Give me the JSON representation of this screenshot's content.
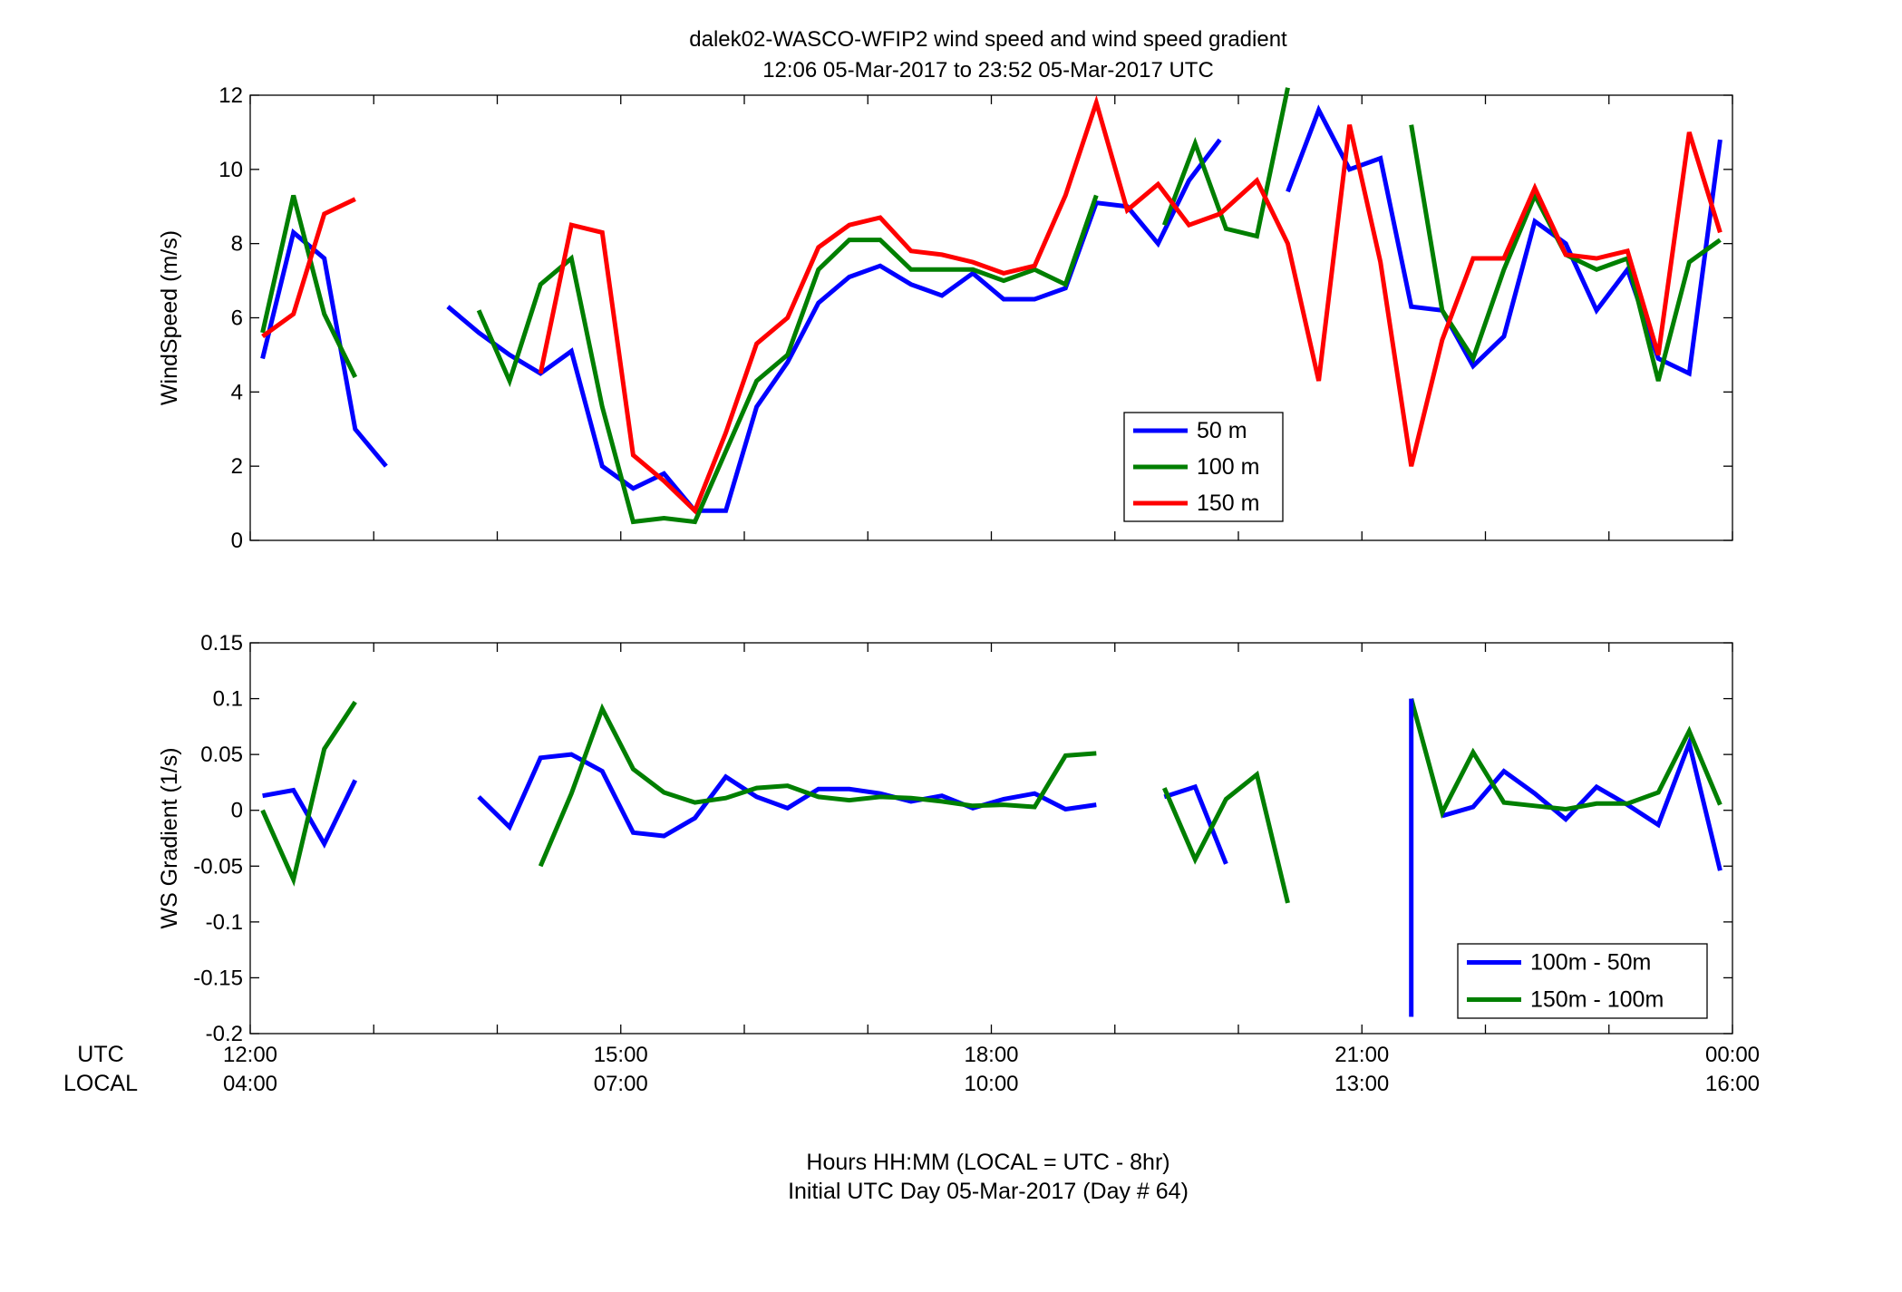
{
  "title": {
    "line1": "dalek02-WASCO-WFIP2  wind speed and wind speed gradient",
    "line2": "12:06 05-Mar-2017 to 23:52 05-Mar-2017  UTC"
  },
  "footer": {
    "line1": "Hours HH:MM  (LOCAL = UTC - 8hr)",
    "line2": "Initial UTC Day 05-Mar-2017 (Day # 64)"
  },
  "time_axis": {
    "utc_label": "UTC",
    "local_label": "LOCAL",
    "ticks": [
      {
        "hour": 12,
        "utc": "12:00",
        "local": "04:00"
      },
      {
        "hour": 15,
        "utc": "15:00",
        "local": "07:00"
      },
      {
        "hour": 18,
        "utc": "18:00",
        "local": "10:00"
      },
      {
        "hour": 21,
        "utc": "21:00",
        "local": "13:00"
      },
      {
        "hour": 24,
        "utc": "00:00",
        "local": "16:00"
      }
    ]
  },
  "colors": {
    "blue": "#0000ff",
    "green": "#007f00",
    "red": "#ff0000",
    "axis": "#000000"
  },
  "chart_data": [
    {
      "type": "line",
      "ylabel": "WindSpeed (m/s)",
      "xlim": [
        12,
        24
      ],
      "ylim": [
        0,
        12
      ],
      "yticks": [
        0,
        2,
        4,
        6,
        8,
        10,
        12
      ],
      "legend_position": "bottom-right",
      "series": [
        {
          "name": "50 m",
          "color": "#0000ff",
          "points": [
            [
              12.1,
              4.9
            ],
            [
              12.35,
              8.3
            ],
            [
              12.6,
              7.6
            ],
            [
              12.85,
              3.0
            ],
            [
              13.1,
              2.0
            ],
            null,
            [
              13.6,
              6.3
            ],
            [
              13.85,
              5.6
            ],
            [
              14.1,
              5.0
            ],
            [
              14.35,
              4.5
            ],
            [
              14.6,
              5.1
            ],
            [
              14.85,
              2.0
            ],
            [
              15.1,
              1.4
            ],
            [
              15.35,
              1.8
            ],
            [
              15.6,
              0.8
            ],
            [
              15.85,
              0.8
            ],
            [
              16.1,
              3.6
            ],
            [
              16.35,
              4.8
            ],
            [
              16.6,
              6.4
            ],
            [
              16.85,
              7.1
            ],
            [
              17.1,
              7.4
            ],
            [
              17.35,
              6.9
            ],
            [
              17.6,
              6.6
            ],
            [
              17.85,
              7.2
            ],
            [
              18.1,
              6.5
            ],
            [
              18.35,
              6.5
            ],
            [
              18.6,
              6.8
            ],
            [
              18.85,
              9.1
            ],
            [
              19.1,
              9.0
            ],
            [
              19.35,
              8.0
            ],
            [
              19.6,
              9.7
            ],
            [
              19.85,
              10.8
            ],
            null,
            [
              20.4,
              9.4
            ],
            [
              20.65,
              11.6
            ],
            [
              20.9,
              10.0
            ],
            [
              21.15,
              10.3
            ],
            [
              21.4,
              6.3
            ],
            [
              21.65,
              6.2
            ],
            [
              21.9,
              4.7
            ],
            [
              22.15,
              5.5
            ],
            [
              22.4,
              8.6
            ],
            [
              22.65,
              8.0
            ],
            [
              22.9,
              6.2
            ],
            [
              23.15,
              7.3
            ],
            [
              23.4,
              4.9
            ],
            [
              23.65,
              4.5
            ],
            [
              23.9,
              10.8
            ]
          ]
        },
        {
          "name": "100 m",
          "color": "#007f00",
          "points": [
            [
              12.1,
              5.6
            ],
            [
              12.35,
              9.3
            ],
            [
              12.6,
              6.1
            ],
            [
              12.85,
              4.4
            ],
            null,
            [
              13.85,
              6.2
            ],
            [
              14.1,
              4.3
            ],
            [
              14.35,
              6.9
            ],
            [
              14.6,
              7.6
            ],
            [
              14.85,
              3.6
            ],
            [
              15.1,
              0.5
            ],
            [
              15.35,
              0.6
            ],
            [
              15.6,
              0.5
            ],
            [
              15.85,
              2.4
            ],
            [
              16.1,
              4.3
            ],
            [
              16.35,
              5.0
            ],
            [
              16.6,
              7.3
            ],
            [
              16.85,
              8.1
            ],
            [
              17.1,
              8.1
            ],
            [
              17.35,
              7.3
            ],
            [
              17.6,
              7.3
            ],
            [
              17.85,
              7.3
            ],
            [
              18.1,
              7.0
            ],
            [
              18.35,
              7.3
            ],
            [
              18.6,
              6.9
            ],
            [
              18.85,
              9.3
            ],
            null,
            [
              19.4,
              8.5
            ],
            [
              19.65,
              10.7
            ],
            [
              19.9,
              8.4
            ],
            [
              20.15,
              8.2
            ],
            [
              20.4,
              12.2
            ],
            null,
            [
              21.4,
              11.2
            ],
            [
              21.65,
              6.2
            ],
            [
              21.9,
              4.9
            ],
            [
              22.15,
              7.3
            ],
            [
              22.4,
              9.3
            ],
            [
              22.65,
              7.7
            ],
            [
              22.9,
              7.3
            ],
            [
              23.15,
              7.6
            ],
            [
              23.4,
              4.3
            ],
            [
              23.65,
              7.5
            ],
            [
              23.9,
              8.1
            ]
          ]
        },
        {
          "name": "150 m",
          "color": "#ff0000",
          "points": [
            [
              12.1,
              5.5
            ],
            [
              12.35,
              6.1
            ],
            [
              12.6,
              8.8
            ],
            [
              12.85,
              9.2
            ],
            null,
            [
              14.35,
              4.5
            ],
            [
              14.6,
              8.5
            ],
            [
              14.85,
              8.3
            ],
            [
              15.1,
              2.3
            ],
            [
              15.35,
              1.6
            ],
            [
              15.6,
              0.8
            ],
            [
              15.85,
              2.9
            ],
            [
              16.1,
              5.3
            ],
            [
              16.35,
              6.0
            ],
            [
              16.6,
              7.9
            ],
            [
              16.85,
              8.5
            ],
            [
              17.1,
              8.7
            ],
            [
              17.35,
              7.8
            ],
            [
              17.6,
              7.7
            ],
            [
              17.85,
              7.5
            ],
            [
              18.1,
              7.2
            ],
            [
              18.35,
              7.4
            ],
            [
              18.6,
              9.3
            ],
            [
              18.85,
              11.8
            ],
            [
              19.1,
              8.9
            ],
            [
              19.35,
              9.6
            ],
            [
              19.6,
              8.5
            ],
            [
              19.85,
              8.8
            ],
            [
              20.15,
              9.7
            ],
            [
              20.4,
              8.0
            ],
            [
              20.65,
              4.3
            ],
            [
              20.9,
              11.2
            ],
            [
              21.15,
              7.5
            ],
            [
              21.4,
              2.0
            ],
            [
              21.65,
              5.4
            ],
            [
              21.9,
              7.6
            ],
            [
              22.15,
              7.6
            ],
            [
              22.4,
              9.5
            ],
            [
              22.65,
              7.7
            ],
            [
              22.9,
              7.6
            ],
            [
              23.15,
              7.8
            ],
            [
              23.4,
              5.0
            ],
            [
              23.65,
              11.0
            ],
            [
              23.9,
              8.3
            ]
          ]
        }
      ]
    },
    {
      "type": "line",
      "ylabel": "WS Gradient (1/s)",
      "xlim": [
        12,
        24
      ],
      "ylim": [
        -0.2,
        0.15
      ],
      "yticks": [
        -0.2,
        -0.15,
        -0.1,
        -0.05,
        0,
        0.05,
        0.1,
        0.15
      ],
      "legend_position": "bottom-right",
      "series": [
        {
          "name": "100m - 50m",
          "color": "#0000ff",
          "points": [
            [
              12.1,
              0.013
            ],
            [
              12.35,
              0.018
            ],
            [
              12.6,
              -0.03
            ],
            [
              12.85,
              0.027
            ],
            null,
            [
              13.85,
              0.012
            ],
            [
              14.1,
              -0.015
            ],
            [
              14.35,
              0.047
            ],
            [
              14.6,
              0.05
            ],
            [
              14.85,
              0.035
            ],
            [
              15.1,
              -0.02
            ],
            [
              15.35,
              -0.023
            ],
            [
              15.6,
              -0.007
            ],
            [
              15.85,
              0.03
            ],
            [
              16.1,
              0.012
            ],
            [
              16.35,
              0.002
            ],
            [
              16.6,
              0.019
            ],
            [
              16.85,
              0.019
            ],
            [
              17.1,
              0.015
            ],
            [
              17.35,
              0.008
            ],
            [
              17.6,
              0.013
            ],
            [
              17.85,
              0.002
            ],
            [
              18.1,
              0.01
            ],
            [
              18.35,
              0.015
            ],
            [
              18.6,
              0.001
            ],
            [
              18.85,
              0.005
            ],
            null,
            [
              19.4,
              0.012
            ],
            [
              19.65,
              0.021
            ],
            [
              19.9,
              -0.048
            ],
            null,
            [
              21.65,
              -0.005
            ],
            [
              21.9,
              0.003
            ],
            [
              22.15,
              0.035
            ],
            [
              22.4,
              0.015
            ],
            [
              22.65,
              -0.008
            ],
            [
              22.9,
              0.021
            ],
            [
              23.15,
              0.005
            ],
            [
              23.4,
              -0.013
            ],
            [
              23.65,
              0.06
            ],
            [
              23.9,
              -0.054
            ]
          ]
        },
        {
          "name": "150m - 100m",
          "color": "#007f00",
          "points": [
            [
              12.1,
              0.0
            ],
            [
              12.35,
              -0.062
            ],
            [
              12.6,
              0.055
            ],
            [
              12.85,
              0.097
            ],
            null,
            [
              14.35,
              -0.05
            ],
            [
              14.6,
              0.015
            ],
            [
              14.85,
              0.091
            ],
            [
              15.1,
              0.037
            ],
            [
              15.35,
              0.016
            ],
            [
              15.6,
              0.007
            ],
            [
              15.85,
              0.011
            ],
            [
              16.1,
              0.02
            ],
            [
              16.35,
              0.022
            ],
            [
              16.6,
              0.012
            ],
            [
              16.85,
              0.009
            ],
            [
              17.1,
              0.012
            ],
            [
              17.35,
              0.011
            ],
            [
              17.6,
              0.008
            ],
            [
              17.85,
              0.004
            ],
            [
              18.1,
              0.005
            ],
            [
              18.35,
              0.003
            ],
            [
              18.6,
              0.049
            ],
            [
              18.85,
              0.051
            ],
            null,
            [
              19.4,
              0.02
            ],
            [
              19.65,
              -0.044
            ],
            [
              19.9,
              0.01
            ],
            [
              20.15,
              0.032
            ],
            [
              20.4,
              -0.083
            ],
            null,
            [
              21.4,
              0.1
            ],
            [
              21.65,
              -0.002
            ],
            [
              21.9,
              0.052
            ],
            [
              22.15,
              0.007
            ],
            [
              22.4,
              0.004
            ],
            [
              22.65,
              0.001
            ],
            [
              22.9,
              0.006
            ],
            [
              23.15,
              0.006
            ],
            [
              23.4,
              0.016
            ],
            [
              23.65,
              0.071
            ],
            [
              23.9,
              0.005
            ]
          ]
        },
        {
          "name": "",
          "color": "#0000ff",
          "points": [
            [
              21.4,
              0.1
            ],
            [
              21.4,
              -0.185
            ]
          ]
        }
      ]
    }
  ]
}
